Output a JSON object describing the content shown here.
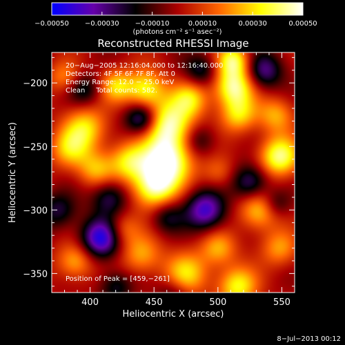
{
  "chart_data": {
    "type": "heatmap",
    "title": "Reconstructed RHESSI Image",
    "xlabel": "Heliocentric X (arcsec)",
    "ylabel": "Heliocentric Y (arcsec)",
    "xlim": [
      370,
      560
    ],
    "ylim": [
      -365,
      -176
    ],
    "x_ticks": [
      400,
      450,
      500,
      550
    ],
    "x_tick_labels": [
      "400",
      "450",
      "500",
      "550"
    ],
    "y_ticks": [
      -200,
      -250,
      -300,
      -350
    ],
    "y_tick_labels": [
      "−200",
      "−250",
      "−300",
      "−350"
    ],
    "colorbar": {
      "range": [
        -0.0005,
        0.0005
      ],
      "tick_values": [
        -0.0005,
        -0.0003,
        -0.0001,
        0.0001,
        0.0003,
        0.0005
      ],
      "tick_labels": [
        "−0.00050",
        "−0.00030",
        "−0.00010",
        "0.00010",
        "0.00030",
        "0.00050"
      ],
      "label": "(photons cm⁻² s⁻¹ asec⁻²)"
    },
    "annotations": [
      "20−Aug−2005 12:16:04.000 to 12:16:40.000",
      "Detectors: 4F 5F 6F 7F 8F, Att 0",
      "Energy Range: 12.0 − 25.0 keV",
      "Clean     Total counts: 582."
    ],
    "peak_label": "Position of Peak = [459,−261]",
    "sources": [
      {
        "x": 459,
        "y": -261,
        "amp": 0.0005,
        "r": 14
      },
      {
        "x": 462,
        "y": -232,
        "amp": 0.00042,
        "r": 13
      },
      {
        "x": 450,
        "y": -282,
        "amp": 0.0004,
        "r": 12
      },
      {
        "x": 430,
        "y": -262,
        "amp": 0.0003,
        "r": 11
      },
      {
        "x": 443,
        "y": -205,
        "amp": 0.00036,
        "r": 11
      },
      {
        "x": 420,
        "y": -202,
        "amp": 0.00026,
        "r": 9
      },
      {
        "x": 478,
        "y": -212,
        "amp": 0.00028,
        "r": 10
      },
      {
        "x": 396,
        "y": -235,
        "amp": 0.0003,
        "r": 12
      },
      {
        "x": 384,
        "y": -252,
        "amp": 0.00026,
        "r": 11
      },
      {
        "x": 404,
        "y": -268,
        "amp": 0.00024,
        "r": 10
      },
      {
        "x": 512,
        "y": -203,
        "amp": 0.00042,
        "r": 11
      },
      {
        "x": 512,
        "y": -182,
        "amp": 0.00036,
        "r": 9
      },
      {
        "x": 516,
        "y": -225,
        "amp": 0.00028,
        "r": 10
      },
      {
        "x": 548,
        "y": -258,
        "amp": 0.00042,
        "r": 11
      },
      {
        "x": 545,
        "y": -225,
        "amp": 0.00024,
        "r": 10
      },
      {
        "x": 532,
        "y": -300,
        "amp": 0.0003,
        "r": 11
      },
      {
        "x": 548,
        "y": -330,
        "amp": 0.00022,
        "r": 10
      },
      {
        "x": 515,
        "y": -360,
        "amp": 0.00034,
        "r": 11
      },
      {
        "x": 475,
        "y": -350,
        "amp": 0.0003,
        "r": 12
      },
      {
        "x": 500,
        "y": -330,
        "amp": 0.00024,
        "r": 10
      },
      {
        "x": 388,
        "y": -340,
        "amp": 0.00026,
        "r": 10
      },
      {
        "x": 440,
        "y": -335,
        "amp": 0.00024,
        "r": 11
      },
      {
        "x": 425,
        "y": -315,
        "amp": 0.00018,
        "r": 9
      },
      {
        "x": 380,
        "y": -195,
        "amp": 0.0002,
        "r": 9
      },
      {
        "x": 500,
        "y": -270,
        "amp": 0.00016,
        "r": 9
      },
      {
        "x": 440,
        "y": -228,
        "amp": -0.00035,
        "r": 9
      },
      {
        "x": 408,
        "y": -322,
        "amp": -0.00045,
        "r": 11
      },
      {
        "x": 490,
        "y": -300,
        "amp": -0.0004,
        "r": 11
      },
      {
        "x": 525,
        "y": -278,
        "amp": -0.0003,
        "r": 10
      },
      {
        "x": 536,
        "y": -190,
        "amp": -0.0003,
        "r": 10
      },
      {
        "x": 486,
        "y": -190,
        "amp": -0.00022,
        "r": 9
      },
      {
        "x": 415,
        "y": -290,
        "amp": -0.00025,
        "r": 10
      },
      {
        "x": 395,
        "y": -205,
        "amp": -0.0002,
        "r": 9
      },
      {
        "x": 485,
        "y": -245,
        "amp": -0.00018,
        "r": 9
      },
      {
        "x": 460,
        "y": -305,
        "amp": -0.0002,
        "r": 9
      },
      {
        "x": 545,
        "y": -295,
        "amp": -0.00018,
        "r": 8
      },
      {
        "x": 375,
        "y": -300,
        "amp": -0.00022,
        "r": 10
      },
      {
        "x": 465,
        "y": -365,
        "amp": -0.00015,
        "r": 9
      },
      {
        "x": 420,
        "y": -360,
        "amp": -0.0002,
        "r": 9
      }
    ]
  },
  "footer": {
    "timestamp": "8−Jul−2013 00:12"
  },
  "colors": {
    "background": "#000000",
    "text": "#ffffff",
    "colormap": [
      "#0000ff",
      "#6600aa",
      "#000000",
      "#aa0000",
      "#ff6600",
      "#ffff00",
      "#ffffff"
    ]
  }
}
